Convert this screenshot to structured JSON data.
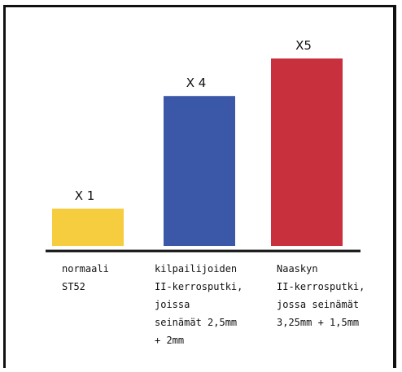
{
  "chart_data": {
    "type": "bar",
    "categories": [
      "normaali\nST52",
      "kilpailijoiden\nII-kerrosputki,\njoissa\nseinämät 2,5mm\n+ 2mm",
      "Naaskyn\nII-kerrosputki,\njossa seinämät\n3,25mm + 1,5mm"
    ],
    "values": [
      1,
      4,
      5
    ],
    "value_labels": [
      "X 1",
      "X 4",
      "X5"
    ],
    "colors": [
      "#f6cd3f",
      "#3b57a8",
      "#c9303e"
    ],
    "ylim": [
      0,
      5
    ],
    "grid": false,
    "legend": "none"
  }
}
